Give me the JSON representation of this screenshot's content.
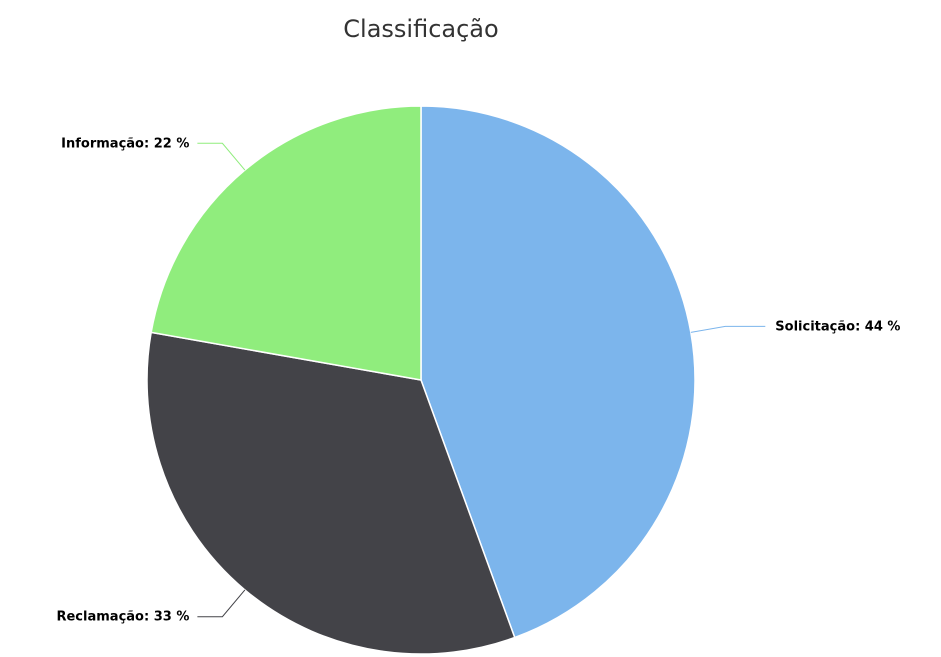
{
  "chart_data": {
    "type": "pie",
    "title": "Classificação",
    "categories": [
      "Solicitação",
      "Reclamação",
      "Informação"
    ],
    "values": [
      44,
      33,
      22
    ],
    "value_labels": [
      "44 %",
      "33 %",
      "22 %"
    ],
    "colors": [
      "#7cb5ec",
      "#434348",
      "#90ed7d"
    ]
  }
}
